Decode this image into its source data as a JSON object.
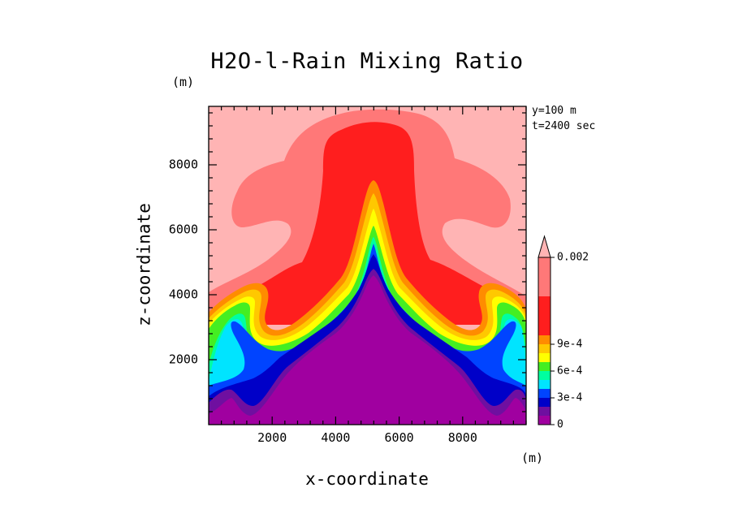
{
  "chart_data": {
    "type": "contourf",
    "title": "H2O-l-Rain Mixing Ratio",
    "xlabel": "x-coordinate",
    "ylabel": "z-coordinate",
    "x_unit": "(m)",
    "z_unit": "(m)",
    "info": [
      "y=100 m",
      "t=2400 sec"
    ],
    "xlim": [
      0,
      10000
    ],
    "zlim": [
      0,
      9800
    ],
    "x_ticks": [
      2000,
      4000,
      6000,
      8000
    ],
    "z_ticks": [
      2000,
      4000,
      6000,
      8000
    ],
    "x_tick_labels": [
      "2000",
      "4000",
      "6000",
      "8000"
    ],
    "z_tick_labels": [
      "2000",
      "4000",
      "6000",
      "8000"
    ],
    "colorbar": {
      "levels": [
        0,
        0.0001,
        0.0002,
        0.0003,
        0.0004,
        0.0005,
        0.0006,
        0.0007,
        0.0008,
        0.0009,
        0.001,
        0.0015,
        0.002
      ],
      "colors": [
        "#a000a0",
        "#6f0fa0",
        "#0000c8",
        "#0044ff",
        "#00e4ff",
        "#00ffa0",
        "#44ee22",
        "#ffff00",
        "#ffc800",
        "#ff8c00",
        "#ff1e1e",
        "#ff7878",
        "#ffb4b4"
      ],
      "tick_labels": [
        "0",
        "3e-4",
        "6e-4",
        "9e-4",
        "0.002"
      ],
      "tick_values": [
        0,
        0.0003,
        0.0006,
        0.0009,
        0.002
      ],
      "extend": "max"
    },
    "description_levels": [
      "upper atmosphere background ~0.002 (light pink)",
      "mushroom-shaped cloud top 0.0015-0.002 (salmon)",
      "central column 0.001-0.0015 (red) reaching ~9400 m at x=5000",
      "mountain-like core below 0.0001 (purple) peaking ~4700 m at x=5000"
    ]
  }
}
